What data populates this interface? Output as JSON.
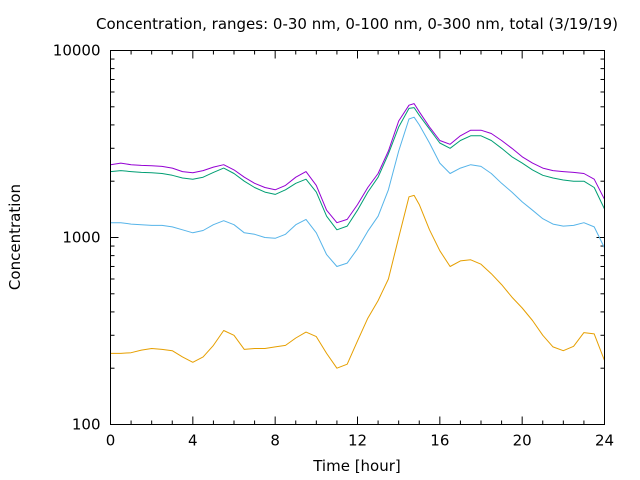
{
  "chart_data": {
    "type": "line",
    "title": "Concentration, ranges: 0-30 nm, 0-100 nm, 0-300 nm, total (3/19/19)",
    "xlabel": "Time [hour]",
    "ylabel": "Concentration",
    "xlim": [
      0,
      24
    ],
    "ylim": [
      100,
      10000
    ],
    "yscale": "log",
    "xticks": [
      0,
      4,
      8,
      12,
      16,
      20,
      24
    ],
    "xtick_labels": [
      "0",
      "4",
      "8",
      "12",
      "16",
      "20",
      "24"
    ],
    "yticks": [
      100,
      1000,
      10000
    ],
    "ytick_labels": [
      "100",
      "1000",
      "10000"
    ],
    "grid": false,
    "legend": "none",
    "series": [
      {
        "color": "#e69f00",
        "points": [
          [
            0,
            240
          ],
          [
            0.5,
            240
          ],
          [
            1,
            242
          ],
          [
            1.5,
            250
          ],
          [
            2,
            255
          ],
          [
            2.5,
            252
          ],
          [
            3,
            248
          ],
          [
            3.5,
            230
          ],
          [
            4,
            215
          ],
          [
            4.5,
            230
          ],
          [
            5,
            265
          ],
          [
            5.5,
            318
          ],
          [
            6,
            300
          ],
          [
            6.5,
            252
          ],
          [
            7,
            255
          ],
          [
            7.5,
            255
          ],
          [
            8,
            260
          ],
          [
            8.5,
            265
          ],
          [
            9,
            290
          ],
          [
            9.5,
            312
          ],
          [
            10,
            295
          ],
          [
            10.5,
            240
          ],
          [
            11,
            200
          ],
          [
            11.5,
            210
          ],
          [
            12,
            280
          ],
          [
            12.5,
            370
          ],
          [
            13,
            460
          ],
          [
            13.5,
            600
          ],
          [
            14,
            1000
          ],
          [
            14.5,
            1650
          ],
          [
            14.75,
            1680
          ],
          [
            15,
            1500
          ],
          [
            15.5,
            1100
          ],
          [
            16,
            850
          ],
          [
            16.5,
            700
          ],
          [
            17,
            750
          ],
          [
            17.5,
            760
          ],
          [
            18,
            720
          ],
          [
            18.5,
            640
          ],
          [
            19,
            560
          ],
          [
            19.5,
            480
          ],
          [
            20,
            420
          ],
          [
            20.5,
            360
          ],
          [
            21,
            300
          ],
          [
            21.5,
            260
          ],
          [
            22,
            248
          ],
          [
            22.5,
            262
          ],
          [
            23,
            310
          ],
          [
            23.5,
            305
          ],
          [
            24,
            220
          ]
        ]
      },
      {
        "color": "#56b4e9",
        "points": [
          [
            0,
            1200
          ],
          [
            0.5,
            1200
          ],
          [
            1,
            1180
          ],
          [
            1.5,
            1170
          ],
          [
            2,
            1160
          ],
          [
            2.5,
            1160
          ],
          [
            3,
            1140
          ],
          [
            3.5,
            1100
          ],
          [
            4,
            1060
          ],
          [
            4.5,
            1090
          ],
          [
            5,
            1170
          ],
          [
            5.5,
            1230
          ],
          [
            6,
            1170
          ],
          [
            6.5,
            1060
          ],
          [
            7,
            1040
          ],
          [
            7.5,
            1000
          ],
          [
            8,
            990
          ],
          [
            8.5,
            1040
          ],
          [
            9,
            1170
          ],
          [
            9.5,
            1250
          ],
          [
            10,
            1060
          ],
          [
            10.5,
            810
          ],
          [
            11,
            700
          ],
          [
            11.5,
            730
          ],
          [
            12,
            870
          ],
          [
            12.5,
            1080
          ],
          [
            13,
            1300
          ],
          [
            13.5,
            1800
          ],
          [
            14,
            2900
          ],
          [
            14.5,
            4300
          ],
          [
            14.75,
            4400
          ],
          [
            15,
            4000
          ],
          [
            15.5,
            3200
          ],
          [
            16,
            2500
          ],
          [
            16.5,
            2200
          ],
          [
            17,
            2350
          ],
          [
            17.5,
            2450
          ],
          [
            18,
            2400
          ],
          [
            18.5,
            2200
          ],
          [
            19,
            1950
          ],
          [
            19.5,
            1750
          ],
          [
            20,
            1550
          ],
          [
            20.5,
            1400
          ],
          [
            21,
            1260
          ],
          [
            21.5,
            1180
          ],
          [
            22,
            1150
          ],
          [
            22.5,
            1160
          ],
          [
            23,
            1200
          ],
          [
            23.5,
            1140
          ],
          [
            24,
            880
          ]
        ]
      },
      {
        "color": "#009e73",
        "points": [
          [
            0,
            2250
          ],
          [
            0.5,
            2280
          ],
          [
            1,
            2250
          ],
          [
            1.5,
            2230
          ],
          [
            2,
            2220
          ],
          [
            2.5,
            2200
          ],
          [
            3,
            2150
          ],
          [
            3.5,
            2080
          ],
          [
            4,
            2050
          ],
          [
            4.5,
            2100
          ],
          [
            5,
            2230
          ],
          [
            5.5,
            2350
          ],
          [
            6,
            2200
          ],
          [
            6.5,
            2000
          ],
          [
            7,
            1850
          ],
          [
            7.5,
            1750
          ],
          [
            8,
            1700
          ],
          [
            8.5,
            1800
          ],
          [
            9,
            1950
          ],
          [
            9.5,
            2050
          ],
          [
            10,
            1750
          ],
          [
            10.5,
            1300
          ],
          [
            11,
            1100
          ],
          [
            11.5,
            1150
          ],
          [
            12,
            1400
          ],
          [
            12.5,
            1750
          ],
          [
            13,
            2100
          ],
          [
            13.5,
            2800
          ],
          [
            14,
            3900
          ],
          [
            14.5,
            4900
          ],
          [
            14.75,
            4950
          ],
          [
            15,
            4500
          ],
          [
            15.5,
            3800
          ],
          [
            16,
            3200
          ],
          [
            16.5,
            3000
          ],
          [
            17,
            3300
          ],
          [
            17.5,
            3500
          ],
          [
            18,
            3500
          ],
          [
            18.5,
            3300
          ],
          [
            19,
            3000
          ],
          [
            19.5,
            2700
          ],
          [
            20,
            2500
          ],
          [
            20.5,
            2300
          ],
          [
            21,
            2150
          ],
          [
            21.5,
            2080
          ],
          [
            22,
            2030
          ],
          [
            22.5,
            2000
          ],
          [
            23,
            2000
          ],
          [
            23.5,
            1850
          ],
          [
            24,
            1420
          ]
        ]
      },
      {
        "color": "#9400d3",
        "points": [
          [
            0,
            2450
          ],
          [
            0.5,
            2500
          ],
          [
            1,
            2450
          ],
          [
            1.5,
            2430
          ],
          [
            2,
            2420
          ],
          [
            2.5,
            2400
          ],
          [
            3,
            2350
          ],
          [
            3.5,
            2250
          ],
          [
            4,
            2220
          ],
          [
            4.5,
            2280
          ],
          [
            5,
            2380
          ],
          [
            5.5,
            2450
          ],
          [
            6,
            2300
          ],
          [
            6.5,
            2100
          ],
          [
            7,
            1950
          ],
          [
            7.5,
            1850
          ],
          [
            8,
            1800
          ],
          [
            8.5,
            1900
          ],
          [
            9,
            2100
          ],
          [
            9.5,
            2250
          ],
          [
            10,
            1900
          ],
          [
            10.5,
            1400
          ],
          [
            11,
            1200
          ],
          [
            11.5,
            1250
          ],
          [
            12,
            1500
          ],
          [
            12.5,
            1850
          ],
          [
            13,
            2200
          ],
          [
            13.5,
            2900
          ],
          [
            14,
            4200
          ],
          [
            14.5,
            5100
          ],
          [
            14.75,
            5200
          ],
          [
            15,
            4700
          ],
          [
            15.5,
            3900
          ],
          [
            16,
            3300
          ],
          [
            16.5,
            3150
          ],
          [
            17,
            3500
          ],
          [
            17.5,
            3750
          ],
          [
            18,
            3750
          ],
          [
            18.5,
            3600
          ],
          [
            19,
            3300
          ],
          [
            19.5,
            3000
          ],
          [
            20,
            2700
          ],
          [
            20.5,
            2500
          ],
          [
            21,
            2350
          ],
          [
            21.5,
            2280
          ],
          [
            22,
            2250
          ],
          [
            22.5,
            2230
          ],
          [
            23,
            2200
          ],
          [
            23.5,
            2050
          ],
          [
            24,
            1600
          ]
        ]
      }
    ]
  }
}
